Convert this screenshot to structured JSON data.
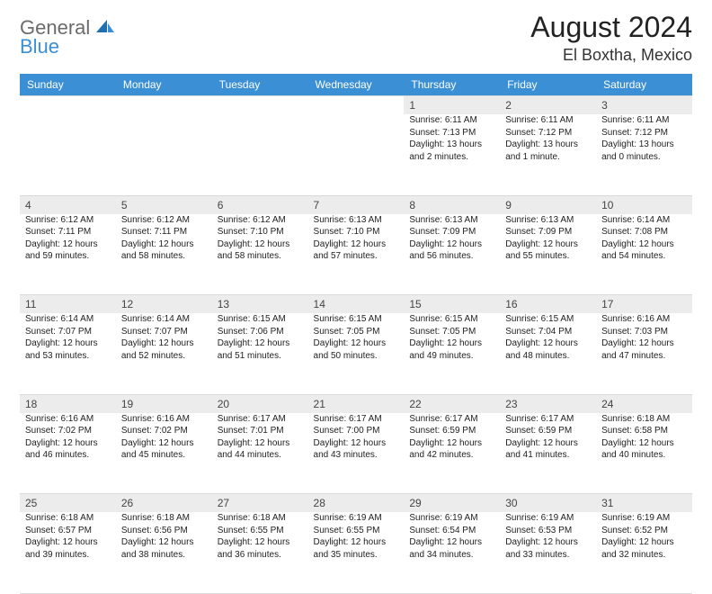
{
  "colors": {
    "header_bg": "#3b8fd4",
    "header_text": "#ffffff",
    "daynum_bg": "#ececec",
    "border": "#d9d9d9",
    "body_text": "#222222",
    "logo_gray": "#6b6b6b",
    "logo_blue": "#3b8fd4"
  },
  "fonts": {
    "month_title_pt": 32,
    "location_pt": 18,
    "weekday_pt": 12,
    "daynum_pt": 12,
    "body_pt": 10
  },
  "header": {
    "logo_general": "General",
    "logo_blue": "Blue",
    "month_title": "August 2024",
    "location": "El Boxtha, Mexico"
  },
  "weekdays": [
    "Sunday",
    "Monday",
    "Tuesday",
    "Wednesday",
    "Thursday",
    "Friday",
    "Saturday"
  ],
  "weeks": [
    {
      "nums": [
        "",
        "",
        "",
        "",
        "1",
        "2",
        "3"
      ],
      "cells": [
        null,
        null,
        null,
        null,
        {
          "sunrise": "Sunrise: 6:11 AM",
          "sunset": "Sunset: 7:13 PM",
          "daylight": "Daylight: 13 hours and 2 minutes."
        },
        {
          "sunrise": "Sunrise: 6:11 AM",
          "sunset": "Sunset: 7:12 PM",
          "daylight": "Daylight: 13 hours and 1 minute."
        },
        {
          "sunrise": "Sunrise: 6:11 AM",
          "sunset": "Sunset: 7:12 PM",
          "daylight": "Daylight: 13 hours and 0 minutes."
        }
      ]
    },
    {
      "nums": [
        "4",
        "5",
        "6",
        "7",
        "8",
        "9",
        "10"
      ],
      "cells": [
        {
          "sunrise": "Sunrise: 6:12 AM",
          "sunset": "Sunset: 7:11 PM",
          "daylight": "Daylight: 12 hours and 59 minutes."
        },
        {
          "sunrise": "Sunrise: 6:12 AM",
          "sunset": "Sunset: 7:11 PM",
          "daylight": "Daylight: 12 hours and 58 minutes."
        },
        {
          "sunrise": "Sunrise: 6:12 AM",
          "sunset": "Sunset: 7:10 PM",
          "daylight": "Daylight: 12 hours and 58 minutes."
        },
        {
          "sunrise": "Sunrise: 6:13 AM",
          "sunset": "Sunset: 7:10 PM",
          "daylight": "Daylight: 12 hours and 57 minutes."
        },
        {
          "sunrise": "Sunrise: 6:13 AM",
          "sunset": "Sunset: 7:09 PM",
          "daylight": "Daylight: 12 hours and 56 minutes."
        },
        {
          "sunrise": "Sunrise: 6:13 AM",
          "sunset": "Sunset: 7:09 PM",
          "daylight": "Daylight: 12 hours and 55 minutes."
        },
        {
          "sunrise": "Sunrise: 6:14 AM",
          "sunset": "Sunset: 7:08 PM",
          "daylight": "Daylight: 12 hours and 54 minutes."
        }
      ]
    },
    {
      "nums": [
        "11",
        "12",
        "13",
        "14",
        "15",
        "16",
        "17"
      ],
      "cells": [
        {
          "sunrise": "Sunrise: 6:14 AM",
          "sunset": "Sunset: 7:07 PM",
          "daylight": "Daylight: 12 hours and 53 minutes."
        },
        {
          "sunrise": "Sunrise: 6:14 AM",
          "sunset": "Sunset: 7:07 PM",
          "daylight": "Daylight: 12 hours and 52 minutes."
        },
        {
          "sunrise": "Sunrise: 6:15 AM",
          "sunset": "Sunset: 7:06 PM",
          "daylight": "Daylight: 12 hours and 51 minutes."
        },
        {
          "sunrise": "Sunrise: 6:15 AM",
          "sunset": "Sunset: 7:05 PM",
          "daylight": "Daylight: 12 hours and 50 minutes."
        },
        {
          "sunrise": "Sunrise: 6:15 AM",
          "sunset": "Sunset: 7:05 PM",
          "daylight": "Daylight: 12 hours and 49 minutes."
        },
        {
          "sunrise": "Sunrise: 6:15 AM",
          "sunset": "Sunset: 7:04 PM",
          "daylight": "Daylight: 12 hours and 48 minutes."
        },
        {
          "sunrise": "Sunrise: 6:16 AM",
          "sunset": "Sunset: 7:03 PM",
          "daylight": "Daylight: 12 hours and 47 minutes."
        }
      ]
    },
    {
      "nums": [
        "18",
        "19",
        "20",
        "21",
        "22",
        "23",
        "24"
      ],
      "cells": [
        {
          "sunrise": "Sunrise: 6:16 AM",
          "sunset": "Sunset: 7:02 PM",
          "daylight": "Daylight: 12 hours and 46 minutes."
        },
        {
          "sunrise": "Sunrise: 6:16 AM",
          "sunset": "Sunset: 7:02 PM",
          "daylight": "Daylight: 12 hours and 45 minutes."
        },
        {
          "sunrise": "Sunrise: 6:17 AM",
          "sunset": "Sunset: 7:01 PM",
          "daylight": "Daylight: 12 hours and 44 minutes."
        },
        {
          "sunrise": "Sunrise: 6:17 AM",
          "sunset": "Sunset: 7:00 PM",
          "daylight": "Daylight: 12 hours and 43 minutes."
        },
        {
          "sunrise": "Sunrise: 6:17 AM",
          "sunset": "Sunset: 6:59 PM",
          "daylight": "Daylight: 12 hours and 42 minutes."
        },
        {
          "sunrise": "Sunrise: 6:17 AM",
          "sunset": "Sunset: 6:59 PM",
          "daylight": "Daylight: 12 hours and 41 minutes."
        },
        {
          "sunrise": "Sunrise: 6:18 AM",
          "sunset": "Sunset: 6:58 PM",
          "daylight": "Daylight: 12 hours and 40 minutes."
        }
      ]
    },
    {
      "nums": [
        "25",
        "26",
        "27",
        "28",
        "29",
        "30",
        "31"
      ],
      "cells": [
        {
          "sunrise": "Sunrise: 6:18 AM",
          "sunset": "Sunset: 6:57 PM",
          "daylight": "Daylight: 12 hours and 39 minutes."
        },
        {
          "sunrise": "Sunrise: 6:18 AM",
          "sunset": "Sunset: 6:56 PM",
          "daylight": "Daylight: 12 hours and 38 minutes."
        },
        {
          "sunrise": "Sunrise: 6:18 AM",
          "sunset": "Sunset: 6:55 PM",
          "daylight": "Daylight: 12 hours and 36 minutes."
        },
        {
          "sunrise": "Sunrise: 6:19 AM",
          "sunset": "Sunset: 6:55 PM",
          "daylight": "Daylight: 12 hours and 35 minutes."
        },
        {
          "sunrise": "Sunrise: 6:19 AM",
          "sunset": "Sunset: 6:54 PM",
          "daylight": "Daylight: 12 hours and 34 minutes."
        },
        {
          "sunrise": "Sunrise: 6:19 AM",
          "sunset": "Sunset: 6:53 PM",
          "daylight": "Daylight: 12 hours and 33 minutes."
        },
        {
          "sunrise": "Sunrise: 6:19 AM",
          "sunset": "Sunset: 6:52 PM",
          "daylight": "Daylight: 12 hours and 32 minutes."
        }
      ]
    }
  ]
}
